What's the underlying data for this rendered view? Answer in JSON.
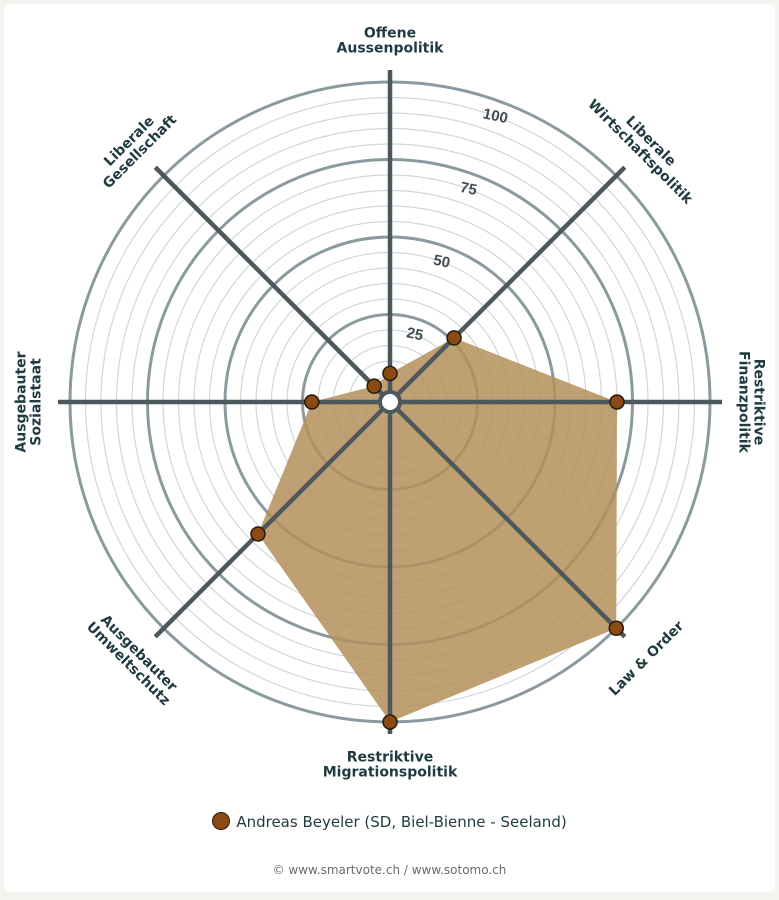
{
  "chart_data": {
    "type": "radar",
    "axes": [
      "Offene Aussenpolitik",
      "Liberale Wirtschaftspolitik",
      "Restriktive Finanzpolitik",
      "Law & Order",
      "Restriktive Migrationspolitik",
      "Ausgebauter Umweltschutz",
      "Ausgebauter Sozialstaat",
      "Liberale Gesellschaft"
    ],
    "axis_label_lines": [
      [
        "Offene",
        "Aussenpolitik"
      ],
      [
        "Liberale",
        "Wirtschaftspolitik"
      ],
      [
        "Restriktive",
        "Finanzpolitik"
      ],
      [
        "Law & Order"
      ],
      [
        "Restriktive",
        "Migrationspolitik"
      ],
      [
        "Ausgebauter",
        "Umweltschutz"
      ],
      [
        "Ausgebauter",
        "Sozialstaat"
      ],
      [
        "Liberale",
        "Gesellschaft"
      ]
    ],
    "rmin": 0,
    "rmax": 100,
    "ticks": [
      25,
      50,
      75,
      100
    ],
    "series": [
      {
        "name": "Andreas Beyeler (SD, Biel-Bienne - Seeland)",
        "color": "#8b4a13",
        "fill": "#b38f5a",
        "values": [
          6,
          26,
          70,
          100,
          100,
          57,
          22,
          4
        ]
      }
    ]
  },
  "legend": {
    "label": "Andreas Beyeler (SD, Biel-Bienne - Seeland)"
  },
  "footer": {
    "credit": "© www.smartvote.ch / www.sotomo.ch"
  }
}
